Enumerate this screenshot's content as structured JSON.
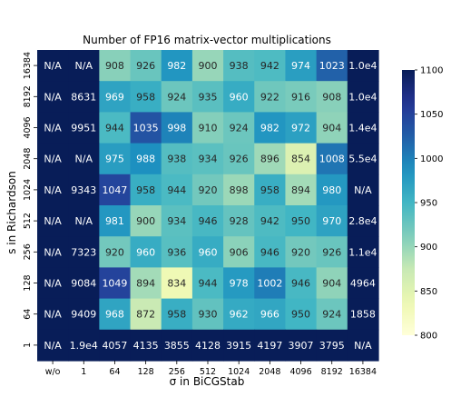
{
  "chart_data": {
    "type": "heatmap",
    "title": "Number of FP16 matrix-vector multiplications",
    "xlabel": "σ in BiCGStab",
    "ylabel": "s in Richardson",
    "x_categories": [
      "w/o",
      "1",
      "64",
      "128",
      "256",
      "512",
      "1024",
      "2048",
      "4096",
      "8192",
      "16384"
    ],
    "y_categories": [
      "16384",
      "8192",
      "4096",
      "2048",
      "1024",
      "512",
      "256",
      "128",
      "64",
      "1"
    ],
    "values": [
      [
        null,
        null,
        908,
        926,
        982,
        900,
        938,
        942,
        974,
        1023,
        10000
      ],
      [
        null,
        8631,
        969,
        958,
        924,
        935,
        960,
        922,
        916,
        908,
        10000
      ],
      [
        null,
        9951,
        944,
        1035,
        998,
        910,
        924,
        982,
        972,
        904,
        14000
      ],
      [
        null,
        null,
        975,
        988,
        938,
        934,
        926,
        896,
        854,
        1008,
        55000
      ],
      [
        null,
        9343,
        1047,
        958,
        944,
        920,
        898,
        958,
        894,
        980,
        null
      ],
      [
        null,
        null,
        981,
        900,
        934,
        946,
        928,
        942,
        950,
        970,
        28000
      ],
      [
        null,
        7323,
        920,
        960,
        936,
        960,
        906,
        946,
        920,
        926,
        11000
      ],
      [
        null,
        9084,
        1049,
        894,
        834,
        944,
        978,
        1002,
        946,
        904,
        4964
      ],
      [
        null,
        9409,
        968,
        872,
        958,
        930,
        962,
        966,
        950,
        924,
        1858
      ],
      [
        null,
        19000,
        4057,
        4135,
        3855,
        4128,
        3915,
        4197,
        3907,
        3795,
        null
      ]
    ],
    "labels": [
      [
        "N/A",
        "N/A",
        "908",
        "926",
        "982",
        "900",
        "938",
        "942",
        "974",
        "1023",
        "1.0e4"
      ],
      [
        "N/A",
        "8631",
        "969",
        "958",
        "924",
        "935",
        "960",
        "922",
        "916",
        "908",
        "1.0e4"
      ],
      [
        "N/A",
        "9951",
        "944",
        "1035",
        "998",
        "910",
        "924",
        "982",
        "972",
        "904",
        "1.4e4"
      ],
      [
        "N/A",
        "N/A",
        "975",
        "988",
        "938",
        "934",
        "926",
        "896",
        "854",
        "1008",
        "5.5e4"
      ],
      [
        "N/A",
        "9343",
        "1047",
        "958",
        "944",
        "920",
        "898",
        "958",
        "894",
        "980",
        "N/A"
      ],
      [
        "N/A",
        "N/A",
        "981",
        "900",
        "934",
        "946",
        "928",
        "942",
        "950",
        "970",
        "2.8e4"
      ],
      [
        "N/A",
        "7323",
        "920",
        "960",
        "936",
        "960",
        "906",
        "946",
        "920",
        "926",
        "1.1e4"
      ],
      [
        "N/A",
        "9084",
        "1049",
        "894",
        "834",
        "944",
        "978",
        "1002",
        "946",
        "904",
        "4964"
      ],
      [
        "N/A",
        "9409",
        "968",
        "872",
        "958",
        "930",
        "962",
        "966",
        "950",
        "924",
        "1858"
      ],
      [
        "N/A",
        "1.9e4",
        "4057",
        "4135",
        "3855",
        "4128",
        "3915",
        "4197",
        "3907",
        "3795",
        "N/A"
      ]
    ],
    "color_range": [
      800,
      1100
    ],
    "colorbar_ticks": [
      800,
      850,
      900,
      950,
      1000,
      1050,
      1100
    ],
    "colormap": "YlGnBu",
    "na_color": "#081d58"
  }
}
